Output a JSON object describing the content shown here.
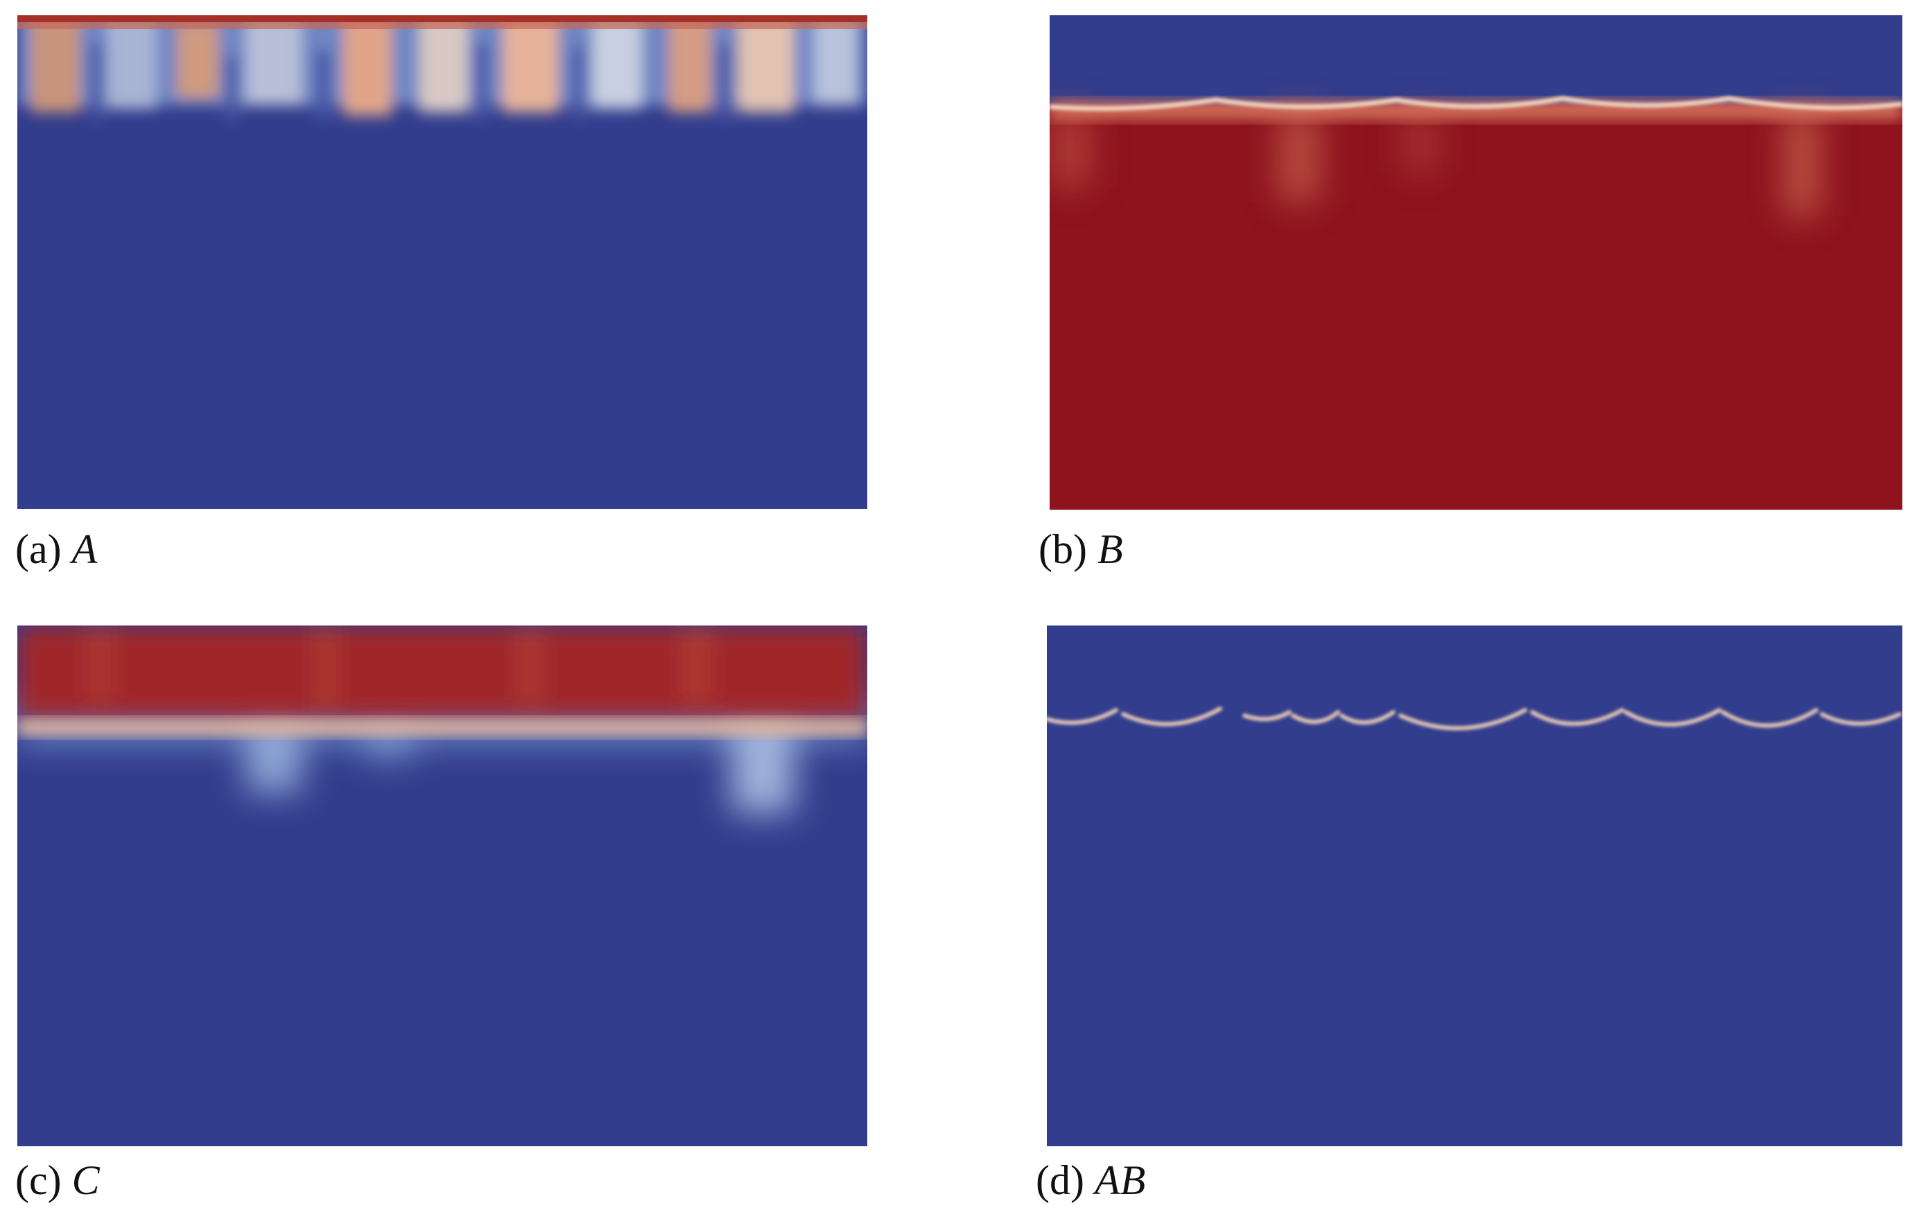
{
  "colors": {
    "low": "#323d8d",
    "high": "#8e131d",
    "mid": "#f0d2b4",
    "background": "#ffffff"
  },
  "panels": {
    "a": {
      "label": "(a)",
      "variable": "A"
    },
    "b": {
      "label": "(b)",
      "variable": "B"
    },
    "c": {
      "label": "(c)",
      "variable": "C"
    },
    "d": {
      "label": "(d)",
      "variable": "AB"
    }
  }
}
